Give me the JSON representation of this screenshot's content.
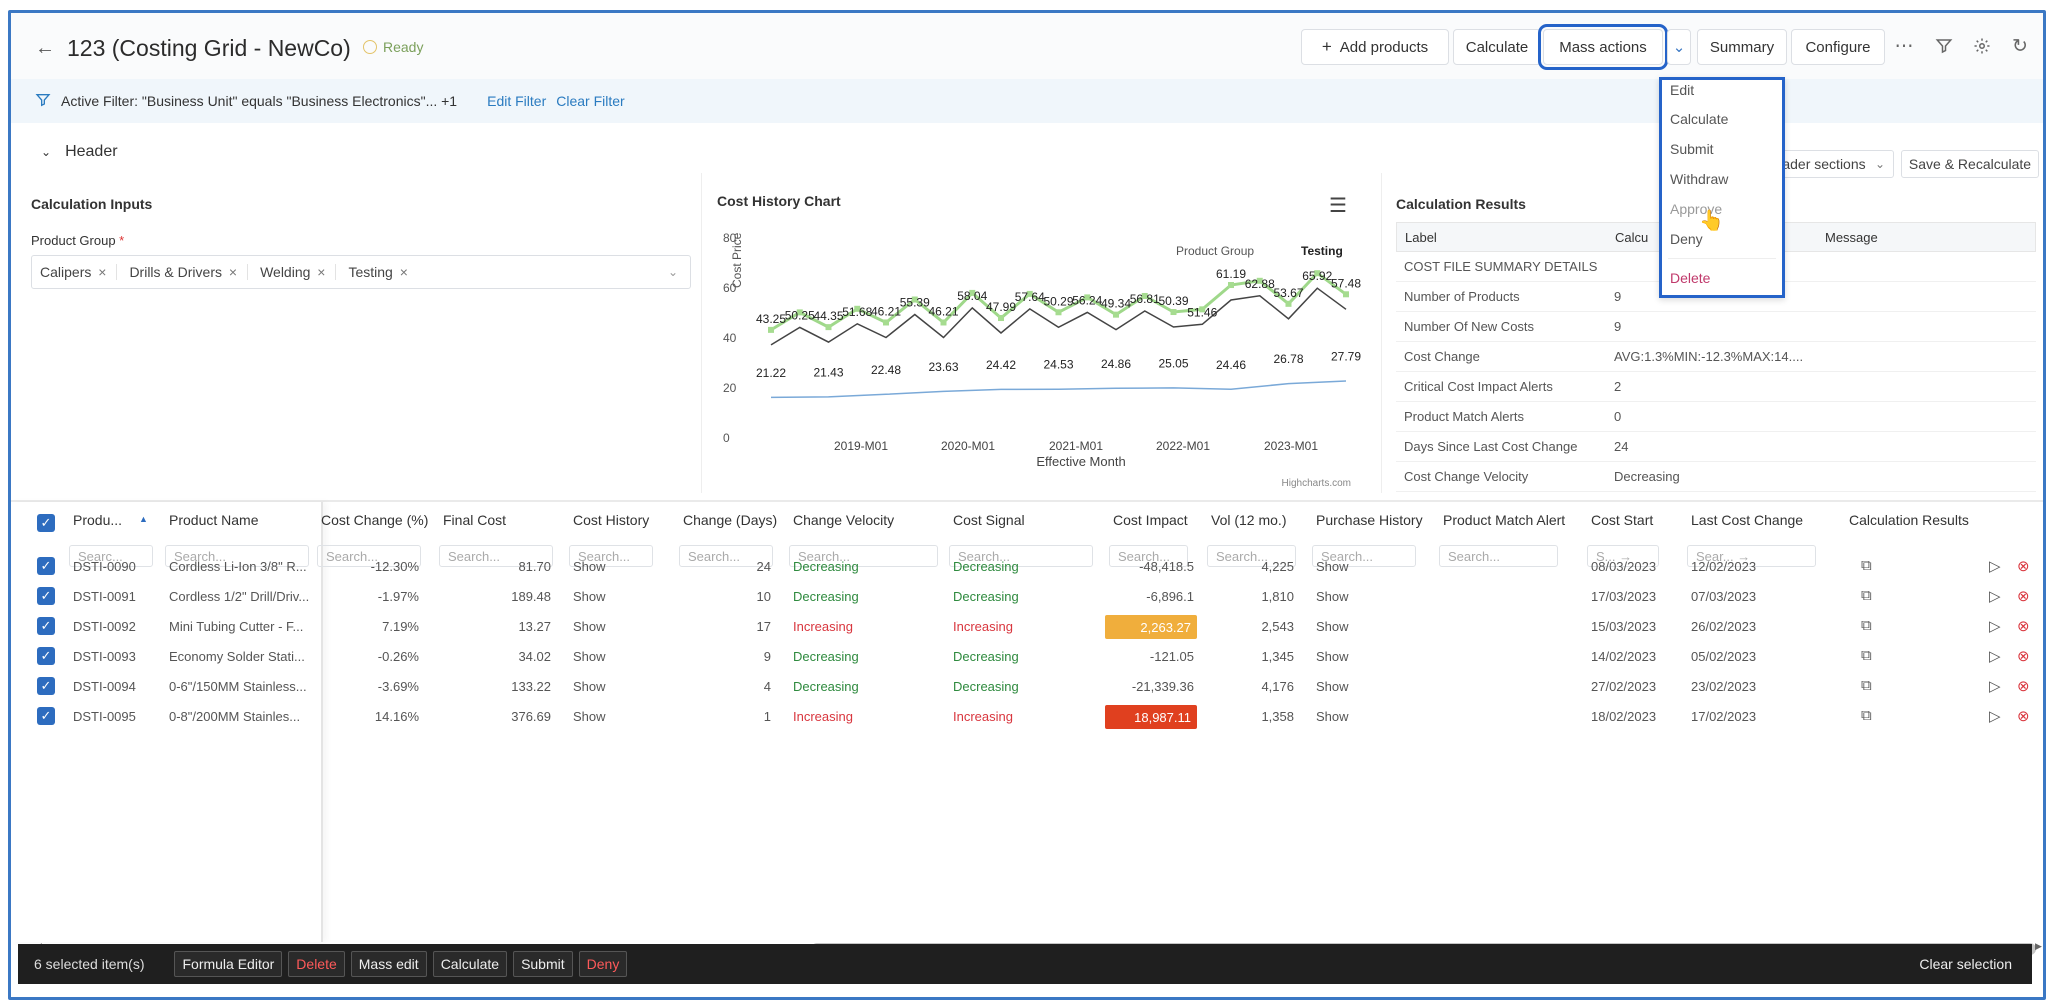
{
  "header": {
    "back_icon": "arrow-left-icon",
    "title": "123 (Costing Grid - NewCo)",
    "status": "Ready",
    "buttons": {
      "add_products": "Add products",
      "calculate": "Calculate",
      "mass_actions": "Mass actions",
      "summary": "Summary",
      "configure": "Configure"
    }
  },
  "filter": {
    "text": "Active Filter: \"Business Unit\" equals \"Business Electronics\"... +1",
    "edit": "Edit Filter",
    "clear": "Clear Filter"
  },
  "section": {
    "title": "Header",
    "sections_select": "le header sections",
    "save_recalc": "Save & Recalculate"
  },
  "inputs": {
    "title": "Calculation Inputs",
    "product_group_label": "Product Group",
    "required_mark": "*",
    "chips": [
      "Calipers",
      "Drills & Drivers",
      "Welding",
      "Testing"
    ]
  },
  "mass_menu": [
    "Edit",
    "Calculate",
    "Submit",
    "Withdraw",
    "Approve",
    "Deny",
    "Delete"
  ],
  "chart_data": {
    "type": "line",
    "title": "Cost History Chart",
    "xlabel": "Effective Month",
    "ylabel": "Cost Price",
    "ylim": [
      0,
      80
    ],
    "yticks": [
      "0",
      "20",
      "40",
      "60",
      "80"
    ],
    "xticks": [
      "2019-M01",
      "2020-M01",
      "2021-M01",
      "2022-M01",
      "2023-M01"
    ],
    "legend_title": "Product Group",
    "legend_series": "Testing",
    "credits": "Highcharts.com",
    "labels_upper": [
      "43.25",
      "50.25",
      "44.35",
      "51.68",
      "46.21",
      "55.39",
      "46.21",
      "58.04",
      "47.99",
      "57.64",
      "50.29",
      "56.24",
      "49.34",
      "56.81",
      "50.39",
      "51.46",
      "61.19",
      "62.88",
      "53.67",
      "65.92",
      "57.48"
    ],
    "labels_lower": [
      "21.22",
      "21.43",
      "22.48",
      "23.63",
      "24.42",
      "24.53",
      "24.86",
      "25.05",
      "24.46",
      "26.78",
      "27.79"
    ]
  },
  "results": {
    "title": "Calculation Results",
    "cols": [
      "Label",
      "Calcu",
      "Message"
    ],
    "rows": [
      {
        "label": "COST FILE SUMMARY DETAILS",
        "value": ""
      },
      {
        "label": "Number of Products",
        "value": "9"
      },
      {
        "label": "Number Of New Costs",
        "value": "9"
      },
      {
        "label": "Cost Change",
        "value": "AVG:1.3%MIN:-12.3%MAX:14...."
      },
      {
        "label": "Critical Cost Impact Alerts",
        "value": "2"
      },
      {
        "label": "Product Match Alerts",
        "value": "0"
      },
      {
        "label": "Days Since Last Cost Change",
        "value": "24"
      },
      {
        "label": "Cost Change Velocity",
        "value": "Decreasing"
      }
    ]
  },
  "grid": {
    "columns": [
      "Produ...",
      "Product Name",
      "Cost Change (%)",
      "Final Cost",
      "Cost History",
      "Change (Days)",
      "Change Velocity",
      "Cost Signal",
      "Cost Impact",
      "Vol (12 mo.)",
      "Purchase History",
      "Product Match Alert",
      "Cost Start",
      "Last Cost Change",
      "Calculation Results"
    ],
    "search_placeholder": "Search...",
    "search_short": "Searc...",
    "search_date1": "S... →",
    "search_date2": "Sear... →",
    "rows": [
      {
        "sku": "DSTI-0090",
        "name": "Cordless Li-Ion 3/8\" R...",
        "change": "-12.30%",
        "final": "81.70",
        "history": "Show",
        "days": "24",
        "velocity": "Decreasing",
        "signal": "Decreasing",
        "impact": "-48,418.5",
        "vol": "4,225",
        "purchase": "Show",
        "start": "08/03/2023",
        "last": "12/02/2023"
      },
      {
        "sku": "DSTI-0091",
        "name": "Cordless 1/2\" Drill/Driv...",
        "change": "-1.97%",
        "final": "189.48",
        "history": "Show",
        "days": "10",
        "velocity": "Decreasing",
        "signal": "Decreasing",
        "impact": "-6,896.1",
        "vol": "1,810",
        "purchase": "Show",
        "start": "17/03/2023",
        "last": "07/03/2023"
      },
      {
        "sku": "DSTI-0092",
        "name": "Mini Tubing Cutter - F...",
        "change": "7.19%",
        "final": "13.27",
        "history": "Show",
        "days": "17",
        "velocity": "Increasing",
        "signal": "Increasing",
        "impact": "2,263.27",
        "vol": "2,543",
        "purchase": "Show",
        "start": "15/03/2023",
        "last": "26/02/2023"
      },
      {
        "sku": "DSTI-0093",
        "name": "Economy Solder Stati...",
        "change": "-0.26%",
        "final": "34.02",
        "history": "Show",
        "days": "9",
        "velocity": "Decreasing",
        "signal": "Decreasing",
        "impact": "-121.05",
        "vol": "1,345",
        "purchase": "Show",
        "start": "14/02/2023",
        "last": "05/02/2023"
      },
      {
        "sku": "DSTI-0094",
        "name": "0-6\"/150MM Stainless...",
        "change": "-3.69%",
        "final": "133.22",
        "history": "Show",
        "days": "4",
        "velocity": "Decreasing",
        "signal": "Decreasing",
        "impact": "-21,339.36",
        "vol": "4,176",
        "purchase": "Show",
        "start": "27/02/2023",
        "last": "23/02/2023"
      },
      {
        "sku": "DSTI-0095",
        "name": "0-8\"/200MM Stainles...",
        "change": "14.16%",
        "final": "376.69",
        "history": "Show",
        "days": "1",
        "velocity": "Increasing",
        "signal": "Increasing",
        "impact": "18,987.11",
        "vol": "1,358",
        "purchase": "Show",
        "start": "18/02/2023",
        "last": "17/02/2023"
      }
    ]
  },
  "footer": {
    "selected": "6 selected item(s)",
    "buttons": [
      "Formula Editor",
      "Delete",
      "Mass edit",
      "Calculate",
      "Submit",
      "Deny"
    ],
    "clear": "Clear selection"
  },
  "colors": {
    "accent": "#2d6cbf",
    "badge_warn": "#f0ae3c",
    "badge_crit": "#e0401f"
  }
}
